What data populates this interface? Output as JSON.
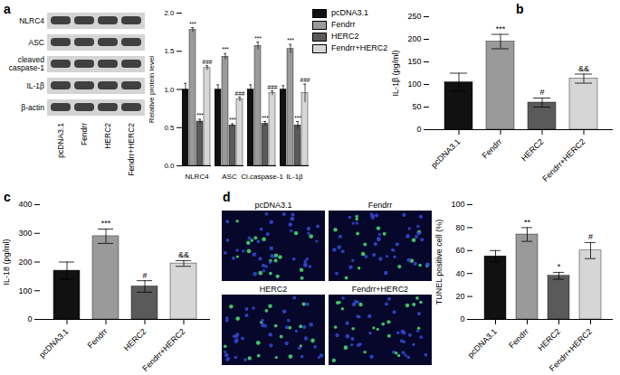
{
  "chart_data": [
    {
      "panel": "a",
      "type": "western_blot",
      "rows": [
        "NLRC4",
        "ASC",
        "cleaved caspase-1",
        "IL-1β",
        "β-actin"
      ],
      "lanes": [
        "pcDNA3.1",
        "Fendrr",
        "HERC2",
        "Fendrr+HERC2"
      ]
    },
    {
      "type": "bar",
      "y_label": "Relative protein level",
      "categories": [
        "NLRC4",
        "ASC",
        "Cl.caspase-1",
        "IL-1β"
      ],
      "series": [
        {
          "name": "pcDNA3.1",
          "color": "#111111",
          "values": [
            1.0,
            1.0,
            1.0,
            1.0
          ],
          "errors": [
            0.08,
            0.06,
            0.06,
            0.05
          ],
          "annotations": [
            null,
            null,
            null,
            null
          ]
        },
        {
          "name": "Fendrr",
          "color": "#9a9a9a",
          "values": [
            1.78,
            1.43,
            1.57,
            1.53
          ],
          "errors": [
            0.03,
            0.04,
            0.05,
            0.06
          ],
          "annotations": [
            "***",
            "***",
            "***",
            "***"
          ]
        },
        {
          "name": "HERC2",
          "color": "#5a5a5a",
          "values": [
            0.58,
            0.53,
            0.55,
            0.53
          ],
          "errors": [
            0.03,
            0.02,
            0.03,
            0.05
          ],
          "annotations": [
            "***",
            "***",
            "***",
            "***"
          ]
        },
        {
          "name": "Fendrr+HERC2",
          "color": "#d6d6d6",
          "values": [
            1.28,
            0.87,
            0.95,
            0.95
          ],
          "errors": [
            0.03,
            0.03,
            0.03,
            0.12
          ],
          "annotations": [
            "###",
            "###",
            "###",
            "###"
          ]
        }
      ],
      "ylim": [
        0,
        2
      ],
      "yticks": [
        {
          "value": 0,
          "label": "0.0"
        },
        0.5,
        {
          "value": 1,
          "label": "1.0"
        },
        1.5,
        {
          "value": 2,
          "label": "2.0"
        }
      ],
      "legend": "top-right"
    },
    {
      "panel": "b",
      "type": "bar",
      "y_label": "IL-1β (pg/ml)",
      "categories": [
        "pcDNA3.1",
        "Fendrr",
        "HERC2",
        "Fendrr+HERC2"
      ],
      "values": [
        105,
        195,
        60,
        113
      ],
      "errors": [
        20,
        16,
        10,
        10
      ],
      "annotations": [
        null,
        "***",
        "#",
        "&&"
      ],
      "colors": [
        "#111111",
        "#9a9a9a",
        "#5a5a5a",
        "#d6d6d6"
      ],
      "ylim": [
        0,
        250
      ],
      "yticks": [
        0,
        50,
        100,
        150,
        200,
        250
      ]
    },
    {
      "panel": "c",
      "type": "bar",
      "y_label": "IL-18 (pg/ml)",
      "categories": [
        "pcDNA3.1",
        "Fendrr",
        "HERC2",
        "Fendrr+HERC2"
      ],
      "values": [
        170,
        290,
        115,
        195
      ],
      "errors": [
        30,
        25,
        20,
        10
      ],
      "annotations": [
        null,
        "***",
        "#",
        "&&"
      ],
      "colors": [
        "#111111",
        "#9a9a9a",
        "#5a5a5a",
        "#d6d6d6"
      ],
      "ylim": [
        0,
        400
      ],
      "yticks": [
        0,
        100,
        200,
        300,
        400
      ]
    },
    {
      "panel": "d",
      "type": "image_grid",
      "labels": [
        "pcDNA3.1",
        "Fendrr",
        "HERC2",
        "Fendrr+HERC2"
      ]
    },
    {
      "type": "bar",
      "y_label": "TUNEL positive cell (%)",
      "categories": [
        "pcDNA3.1",
        "Fendrr",
        "HERC2",
        "Fendrr+HERC2"
      ],
      "values": [
        55,
        74,
        38,
        60
      ],
      "errors": [
        5,
        6,
        3,
        7
      ],
      "annotations": [
        null,
        "**",
        "*",
        "#"
      ],
      "colors": [
        "#111111",
        "#9a9a9a",
        "#5a5a5a",
        "#d6d6d6"
      ],
      "ylim": [
        0,
        100
      ],
      "yticks": [
        0,
        20,
        40,
        60,
        80,
        100
      ]
    }
  ]
}
